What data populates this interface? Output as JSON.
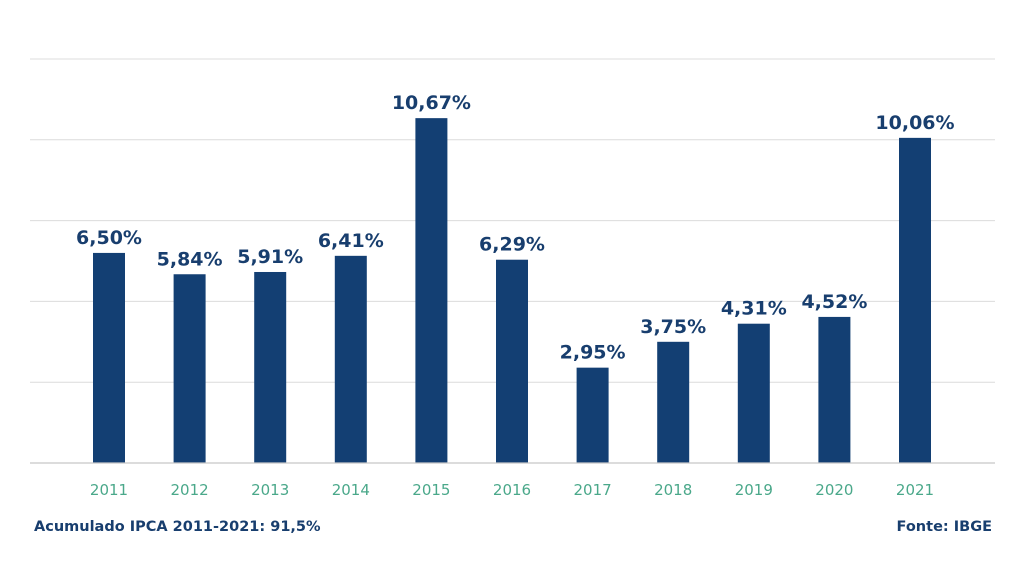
{
  "chart_data": {
    "type": "bar",
    "categories": [
      "2011",
      "2012",
      "2013",
      "2014",
      "2015",
      "2016",
      "2017",
      "2018",
      "2019",
      "2020",
      "2021"
    ],
    "values": [
      6.5,
      5.84,
      5.91,
      6.41,
      10.67,
      6.29,
      2.95,
      3.75,
      4.31,
      4.52,
      10.06
    ],
    "value_labels": [
      "6,50%",
      "5,84%",
      "5,91%",
      "6,41%",
      "10,67%",
      "6,29%",
      "2,95%",
      "3,75%",
      "4,31%",
      "4,52%",
      "10,06%"
    ],
    "title": "",
    "xlabel": "",
    "ylabel": "",
    "ylim": [
      0,
      12.5
    ],
    "grid": true,
    "gridlines_at": [
      2.5,
      5,
      7.5,
      10,
      12.5
    ],
    "y_tick_labels_shown": false,
    "bar_color": "#133f73",
    "value_label_color": "#183e6e",
    "tick_label_color": "#4aa88a"
  },
  "footer": {
    "left_note": "Acumulado IPCA 2011-2021: 91,5%",
    "source": "Fonte: IBGE"
  }
}
